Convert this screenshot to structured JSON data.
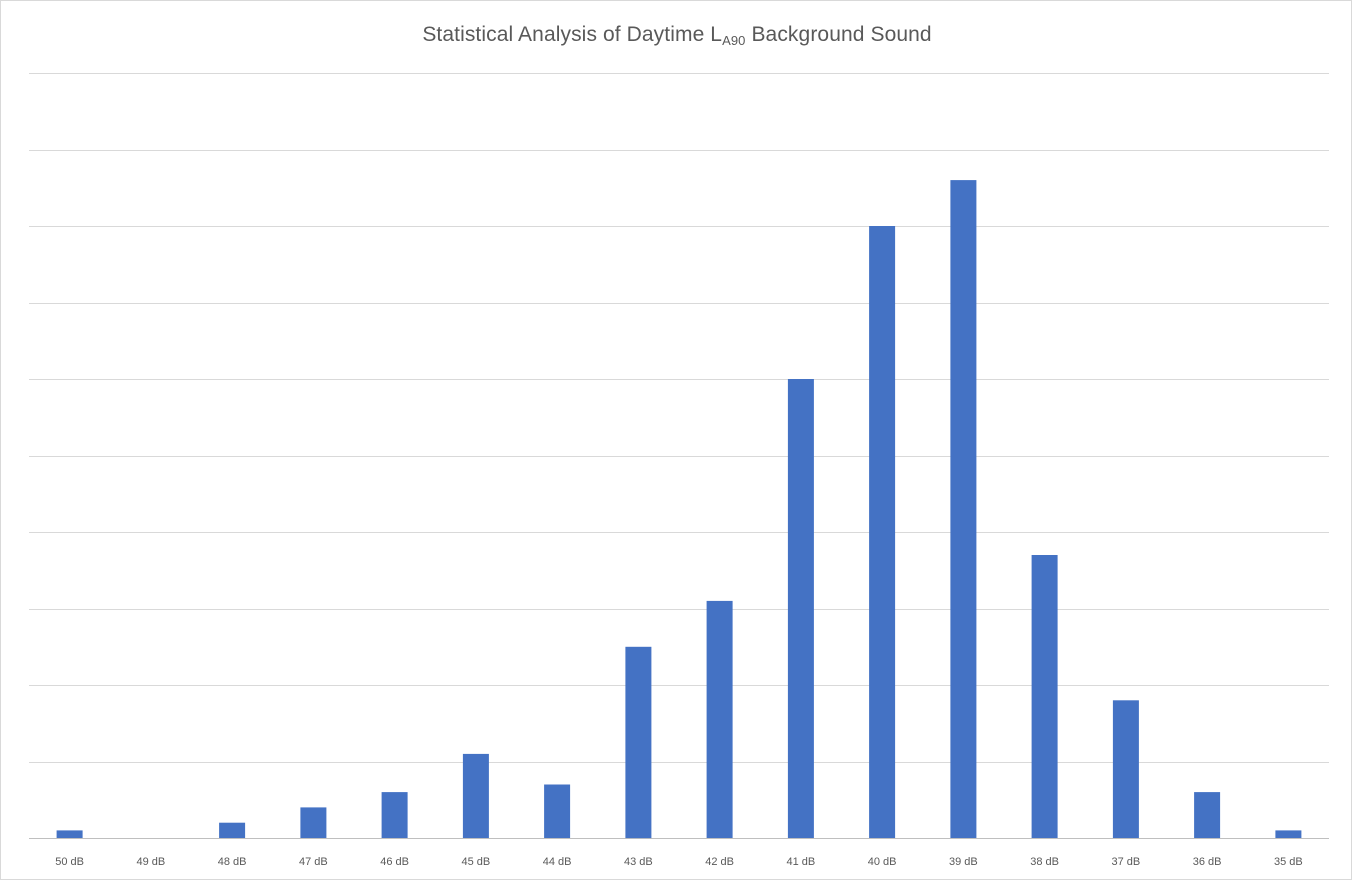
{
  "chart_data": {
    "type": "bar",
    "title": {
      "prefix": "Statistical Analysis of Daytime L",
      "subscript": "A90",
      "suffix": " Background Sound"
    },
    "xlabel": "",
    "ylabel": "",
    "categories": [
      "50 dB",
      "49 dB",
      "48 dB",
      "47 dB",
      "46 dB",
      "45 dB",
      "44 dB",
      "43 dB",
      "42 dB",
      "41 dB",
      "40 dB",
      "39 dB",
      "38 dB",
      "37 dB",
      "36 dB",
      "35 dB"
    ],
    "values": [
      0.5,
      0,
      1,
      2,
      3,
      5.5,
      3.5,
      12.5,
      15.5,
      30,
      40,
      43,
      18.5,
      9,
      3,
      0.5
    ],
    "ylim": [
      0,
      50
    ],
    "y_gridline_count": 10,
    "y_tick_labels_shown": false,
    "grid": true,
    "legend": "none",
    "bar_color": "#4472c4",
    "gridline_color": "#d9d9d9"
  }
}
